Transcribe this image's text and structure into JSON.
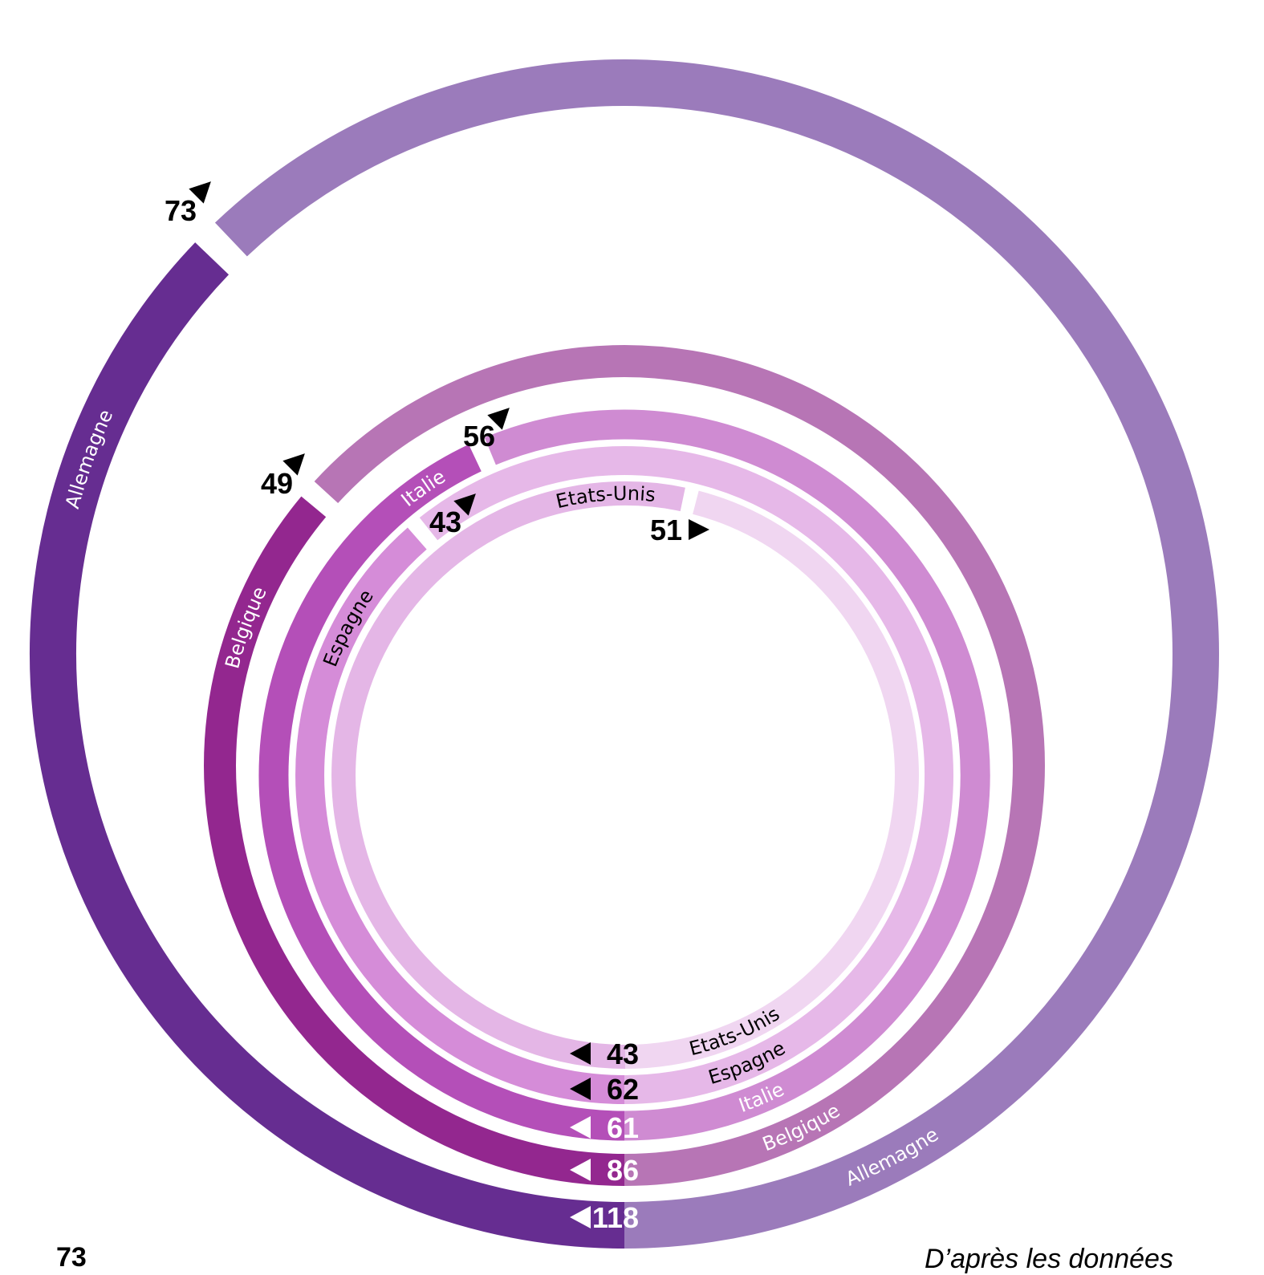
{
  "chart_data": {
    "type": "radial-arc",
    "title": "",
    "series": [
      {
        "name": "Allemagne",
        "start_value": 118,
        "end_value": 73,
        "dark": "#662d91",
        "light": "#9b7bbb",
        "value_text_color": "#ffffff",
        "name_text_color": "#ffffff"
      },
      {
        "name": "Belgique",
        "start_value": 86,
        "end_value": 49,
        "dark": "#93278f",
        "light": "#b775b5",
        "value_text_color": "#ffffff",
        "name_text_color": "#ffffff"
      },
      {
        "name": "Italie",
        "start_value": 61,
        "end_value": 56,
        "dark": "#b44fb8",
        "light": "#cf8bd2",
        "value_text_color": "#ffffff",
        "name_text_color": "#ffffff"
      },
      {
        "name": "Espagne",
        "start_value": 62,
        "end_value": 43,
        "dark": "#d58cd8",
        "light": "#e6b8e8",
        "value_text_color": "#000000",
        "name_text_color": "#000000"
      },
      {
        "name": "Etats-Unis",
        "start_value": 43,
        "end_value": 51,
        "dark": "#e4b6e6",
        "light": "#f0d6f1",
        "value_text_color": "#000000",
        "name_text_color": "#000000"
      }
    ]
  },
  "footer": {
    "legend_value": "73",
    "source": "D’après les données"
  }
}
